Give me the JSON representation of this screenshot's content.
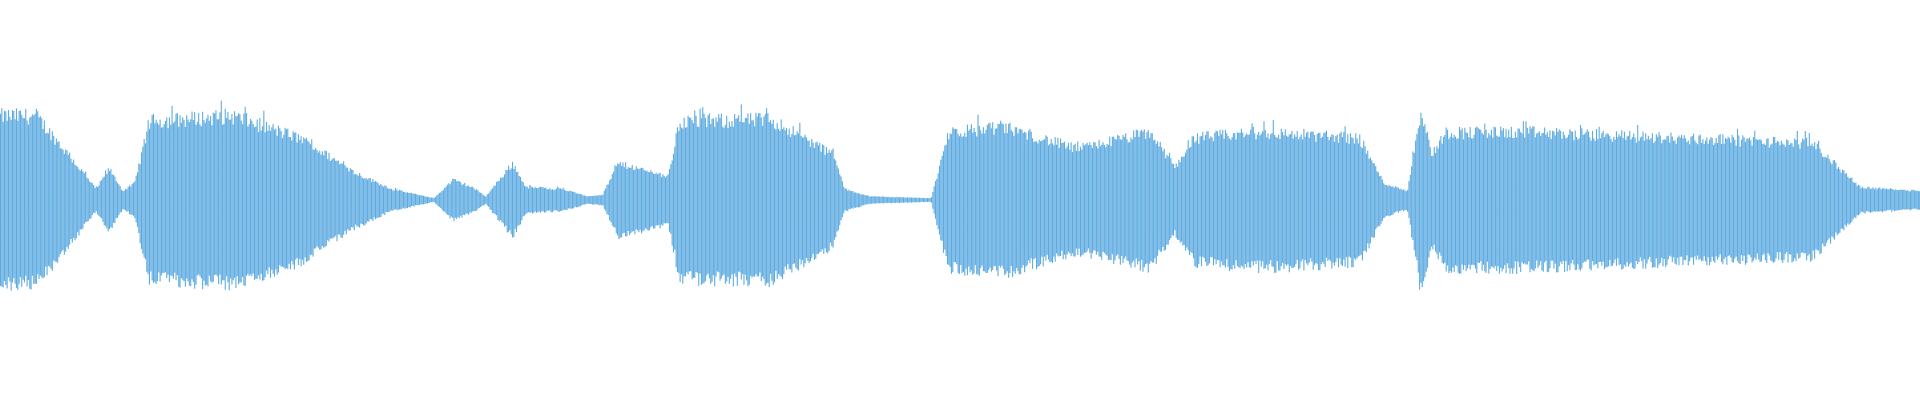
{
  "waveform": {
    "color": "#5dabe1",
    "background": "#ffffff",
    "envelope": [
      [
        0,
        0.46
      ],
      [
        0.019,
        0.46
      ],
      [
        0.041,
        0.18
      ],
      [
        0.05,
        0.06
      ],
      [
        0.057,
        0.17
      ],
      [
        0.064,
        0.05
      ],
      [
        0.07,
        0.09
      ],
      [
        0.078,
        0.43
      ],
      [
        0.121,
        0.46
      ],
      [
        0.156,
        0.34
      ],
      [
        0.185,
        0.15
      ],
      [
        0.204,
        0.06
      ],
      [
        0.226,
        0.01
      ],
      [
        0.236,
        0.11
      ],
      [
        0.246,
        0.07
      ],
      [
        0.253,
        0.02
      ],
      [
        0.267,
        0.2
      ],
      [
        0.274,
        0.07
      ],
      [
        0.293,
        0.06
      ],
      [
        0.306,
        0.02
      ],
      [
        0.314,
        0.03
      ],
      [
        0.322,
        0.2
      ],
      [
        0.348,
        0.13
      ],
      [
        0.354,
        0.43
      ],
      [
        0.402,
        0.44
      ],
      [
        0.434,
        0.25
      ],
      [
        0.44,
        0.06
      ],
      [
        0.453,
        0.02
      ],
      [
        0.485,
        0.01
      ],
      [
        0.494,
        0.37
      ],
      [
        0.523,
        0.4
      ],
      [
        0.561,
        0.28
      ],
      [
        0.599,
        0.37
      ],
      [
        0.612,
        0.18
      ],
      [
        0.622,
        0.34
      ],
      [
        0.657,
        0.37
      ],
      [
        0.708,
        0.34
      ],
      [
        0.721,
        0.09
      ],
      [
        0.733,
        0.05
      ],
      [
        0.74,
        0.49
      ],
      [
        0.746,
        0.25
      ],
      [
        0.753,
        0.37
      ],
      [
        0.797,
        0.37
      ],
      [
        0.944,
        0.31
      ],
      [
        0.969,
        0.07
      ],
      [
        1,
        0.05
      ]
    ]
  }
}
